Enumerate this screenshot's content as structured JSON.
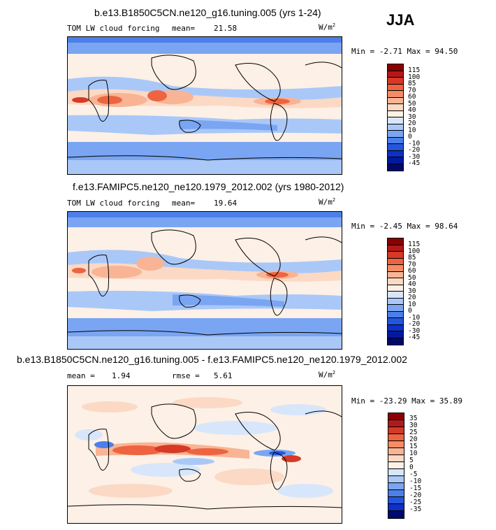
{
  "season": "JJA",
  "panels": [
    {
      "title": "b.e13.B1850C5CN.ne120_g16.tuning.005 (yrs 1-24)",
      "field": "TOM LW cloud forcing",
      "stat1_label": "mean=",
      "stat1_value": "21.58",
      "units": "W/m",
      "minmax": "Min =  -2.71 Max =  94.50",
      "levels": [
        "115",
        "100",
        "85",
        "70",
        "60",
        "50",
        "40",
        "30",
        "20",
        "10",
        "0",
        "-10",
        "-20",
        "-30",
        "-45"
      ],
      "colors": [
        "#8b0000",
        "#b21a1a",
        "#d63a26",
        "#ee6440",
        "#f48c66",
        "#f8b494",
        "#fbd9c4",
        "#fdf0e6",
        "#d7e6fb",
        "#a9c8f8",
        "#7aa5f2",
        "#4d7fea",
        "#2456dd",
        "#0d30c8",
        "#001a9c",
        "#000870"
      ]
    },
    {
      "title": "f.e13.FAMIPC5.ne120_ne120.1979_2012.002 (yrs 1980-2012)",
      "field": "TOM LW cloud forcing",
      "stat1_label": "mean=",
      "stat1_value": "19.64",
      "units": "W/m",
      "minmax": "Min =  -2.45 Max =  98.64",
      "levels": [
        "115",
        "100",
        "85",
        "70",
        "60",
        "50",
        "40",
        "30",
        "20",
        "10",
        "0",
        "-10",
        "-20",
        "-30",
        "-45"
      ],
      "colors": [
        "#8b0000",
        "#b21a1a",
        "#d63a26",
        "#ee6440",
        "#f48c66",
        "#f8b494",
        "#fbd9c4",
        "#fdf0e6",
        "#d7e6fb",
        "#a9c8f8",
        "#7aa5f2",
        "#4d7fea",
        "#2456dd",
        "#0d30c8",
        "#001a9c",
        "#000870"
      ]
    },
    {
      "title": "b.e13.B1850C5CN.ne120_g16.tuning.005 - f.e13.FAMIPC5.ne120_ne120.1979_2012.002",
      "stat1_label": "mean =",
      "stat1_value": "1.94",
      "stat2_label": "rmse =",
      "stat2_value": "5.61",
      "units": "W/m",
      "minmax": "Min = -23.29 Max =  35.89",
      "levels": [
        "35",
        "30",
        "25",
        "20",
        "15",
        "10",
        "5",
        "0",
        "-5",
        "-10",
        "-15",
        "-20",
        "-25",
        "-35"
      ],
      "colors": [
        "#8b0000",
        "#b21a1a",
        "#d63a26",
        "#ee6440",
        "#f48c66",
        "#f8b494",
        "#fbd9c4",
        "#fdf0e6",
        "#d7e6fb",
        "#a9c8f8",
        "#7aa5f2",
        "#4d7fea",
        "#2456dd",
        "#0d30c8",
        "#000870"
      ]
    }
  ]
}
